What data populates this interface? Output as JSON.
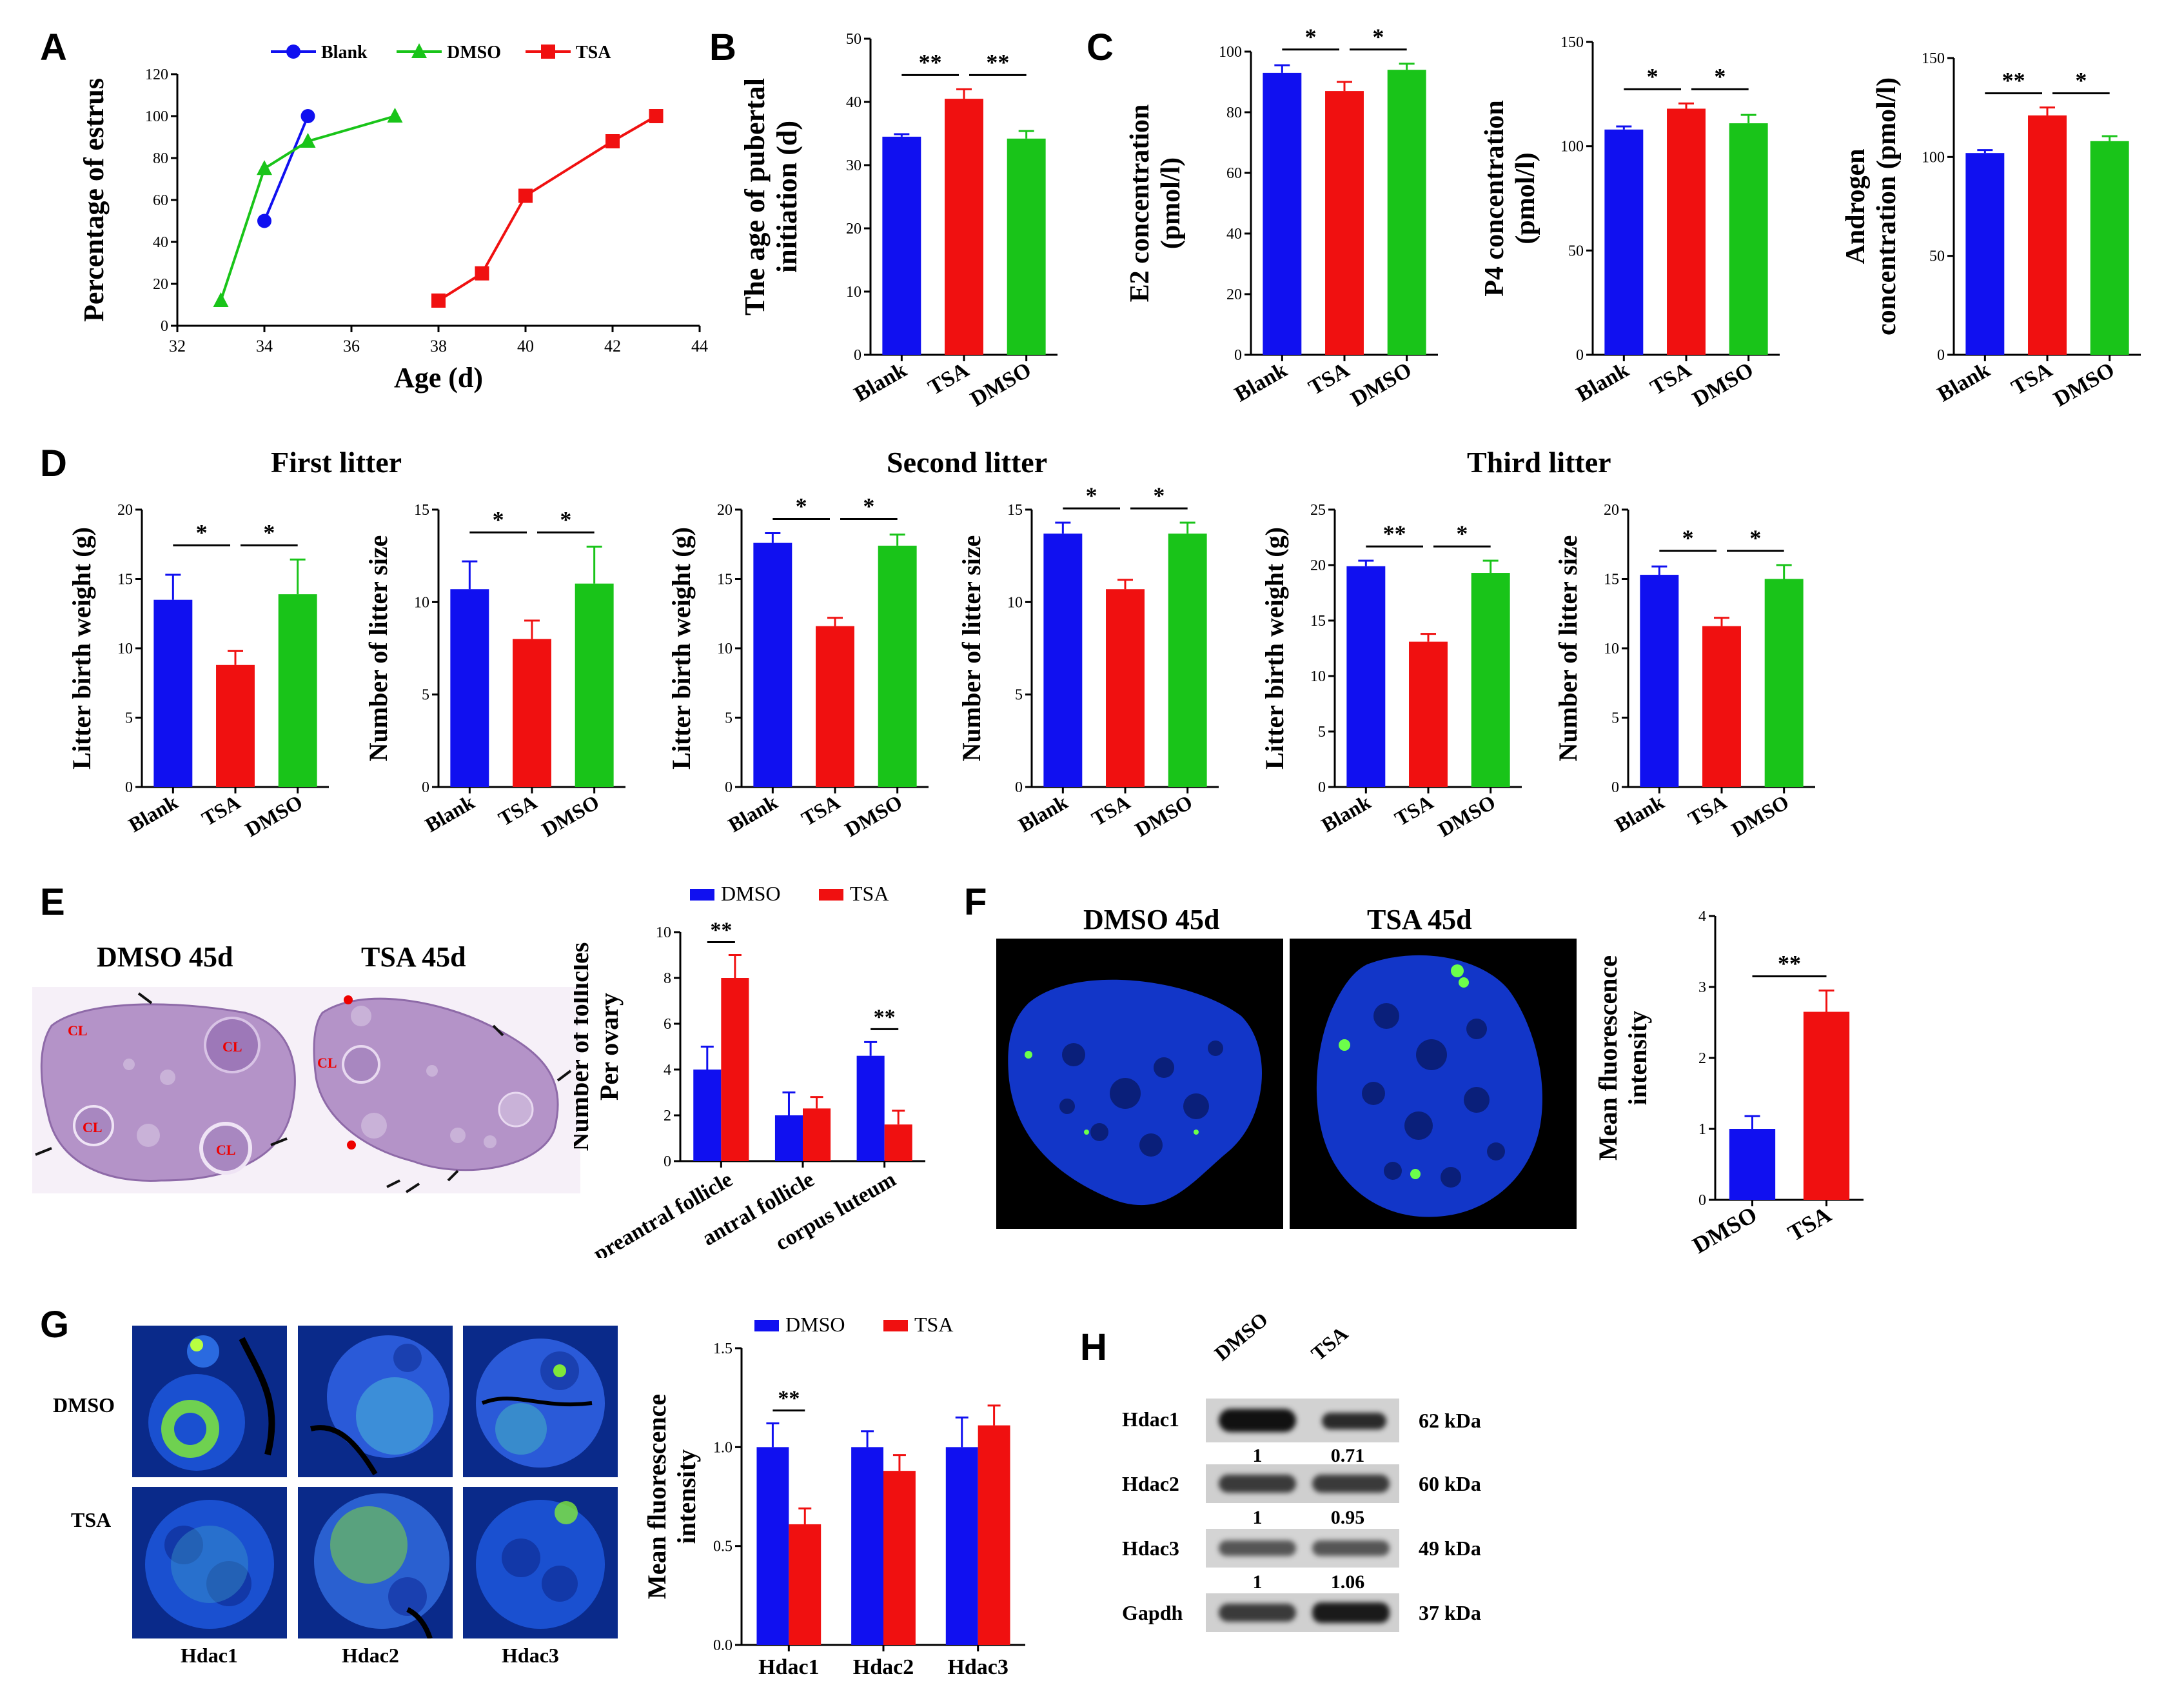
{
  "panel_labels": [
    "A",
    "B",
    "C",
    "D",
    "E",
    "F",
    "G",
    "H"
  ],
  "colors": {
    "blank": "#1010f0",
    "tsa": "#f01010",
    "dmso": "#19c419",
    "histo": "#b493c8",
    "fluor_bg": "#1236c8",
    "fluor_spot": "#6cff4a"
  },
  "titles": {
    "first": "First litter",
    "second": "Second litter",
    "third": "Third litter",
    "e_dmso": "DMSO 45d",
    "e_tsa": "TSA 45d",
    "f_dmso": "DMSO 45d",
    "f_tsa": "TSA 45d"
  },
  "legend": {
    "blank": "Blank",
    "dmso": "DMSO",
    "tsa": "TSA"
  },
  "histo": {
    "cl": "CL"
  },
  "g_rows": [
    "DMSO",
    "TSA"
  ],
  "g_cols": [
    "Hdac1",
    "Hdac2",
    "Hdac3"
  ],
  "western": {
    "lanes": [
      "DMSO",
      "TSA"
    ],
    "rows": [
      {
        "name": "Hdac1",
        "kda": "62 kDa",
        "ratio": [
          "1",
          "0.71"
        ]
      },
      {
        "name": "Hdac2",
        "kda": "60 kDa",
        "ratio": [
          "1",
          "0.95"
        ]
      },
      {
        "name": "Hdac3",
        "kda": "49 kDa",
        "ratio": [
          "1",
          "1.06"
        ]
      },
      {
        "name": "Gapdh",
        "kda": "37 kDa",
        "ratio": null
      }
    ]
  },
  "chart_data": [
    {
      "id": "A",
      "type": "line",
      "xlabel": "Age (d)",
      "ylabel": "Percentage of estrus",
      "xlim": [
        32,
        44
      ],
      "xticks": [
        32,
        34,
        36,
        38,
        40,
        42,
        44
      ],
      "ylim": [
        0,
        120
      ],
      "yticks": [
        0,
        20,
        40,
        60,
        80,
        100,
        120
      ],
      "series": [
        {
          "name": "Blank",
          "color": "#1010f0",
          "marker": "circle",
          "x": [
            34,
            35
          ],
          "y": [
            50,
            100
          ]
        },
        {
          "name": "DMSO",
          "color": "#19c419",
          "marker": "triangle",
          "x": [
            33,
            34,
            35,
            37
          ],
          "y": [
            12,
            75,
            88,
            100
          ]
        },
        {
          "name": "TSA",
          "color": "#f01010",
          "marker": "square",
          "x": [
            38,
            39,
            40,
            42,
            43
          ],
          "y": [
            12,
            25,
            62,
            88,
            100
          ]
        }
      ]
    },
    {
      "id": "B",
      "type": "bar",
      "ylabel": [
        "The age of pubertal",
        "initiation (d)"
      ],
      "categories": [
        "Blank",
        "TSA",
        "DMSO"
      ],
      "values": [
        34.5,
        40.5,
        34.2
      ],
      "errors": [
        0.4,
        1.5,
        1.2
      ],
      "ylim": [
        0,
        50
      ],
      "yticks": [
        0,
        10,
        20,
        30,
        40,
        50
      ],
      "sig": [
        {
          "from": 0,
          "to": 1,
          "label": "**"
        },
        {
          "from": 1,
          "to": 2,
          "label": "**"
        }
      ]
    },
    {
      "id": "C1",
      "type": "bar",
      "ylabel": [
        "E2 concentration",
        "(pmol/l)"
      ],
      "categories": [
        "Blank",
        "TSA",
        "DMSO"
      ],
      "values": [
        93,
        87,
        94
      ],
      "errors": [
        2.5,
        3,
        2
      ],
      "ylim": [
        0,
        100
      ],
      "yticks": [
        0,
        20,
        40,
        60,
        80,
        100
      ],
      "sig": [
        {
          "from": 0,
          "to": 1,
          "label": "*"
        },
        {
          "from": 1,
          "to": 2,
          "label": "*"
        }
      ]
    },
    {
      "id": "C2",
      "type": "bar",
      "ylabel": [
        "P4 concentration",
        "(pmol/l)"
      ],
      "categories": [
        "Blank",
        "TSA",
        "DMSO"
      ],
      "values": [
        108,
        118,
        111
      ],
      "errors": [
        1.5,
        2.5,
        4
      ],
      "ylim": [
        0,
        150
      ],
      "yticks": [
        0,
        50,
        100,
        150
      ],
      "sig": [
        {
          "from": 0,
          "to": 1,
          "label": "*"
        },
        {
          "from": 1,
          "to": 2,
          "label": "*"
        }
      ]
    },
    {
      "id": "C3",
      "type": "bar",
      "ylabel": [
        "Androgen",
        "concentration (pmol/l)"
      ],
      "categories": [
        "Blank",
        "TSA",
        "DMSO"
      ],
      "values": [
        102,
        121,
        108
      ],
      "errors": [
        1.5,
        4,
        2.5
      ],
      "ylim": [
        0,
        150
      ],
      "yticks": [
        0,
        50,
        100,
        150
      ],
      "sig": [
        {
          "from": 0,
          "to": 1,
          "label": "**"
        },
        {
          "from": 1,
          "to": 2,
          "label": "*"
        }
      ]
    },
    {
      "id": "D1",
      "type": "bar",
      "ylabel": [
        "Litter birth weight (g)"
      ],
      "categories": [
        "Blank",
        "TSA",
        "DMSO"
      ],
      "values": [
        13.5,
        8.8,
        13.9
      ],
      "errors": [
        1.8,
        1,
        2.5
      ],
      "ylim": [
        0,
        20
      ],
      "yticks": [
        0,
        5,
        10,
        15,
        20
      ],
      "sig": [
        {
          "from": 0,
          "to": 1,
          "label": "*"
        },
        {
          "from": 1,
          "to": 2,
          "label": "*"
        }
      ]
    },
    {
      "id": "D2",
      "type": "bar",
      "ylabel": [
        "Number of litter size"
      ],
      "categories": [
        "Blank",
        "TSA",
        "DMSO"
      ],
      "values": [
        10.7,
        8,
        11
      ],
      "errors": [
        1.5,
        1,
        2
      ],
      "ylim": [
        0,
        15
      ],
      "yticks": [
        0,
        5,
        10,
        15
      ],
      "sig": [
        {
          "from": 0,
          "to": 1,
          "label": "*"
        },
        {
          "from": 1,
          "to": 2,
          "label": "*"
        }
      ]
    },
    {
      "id": "D3",
      "type": "bar",
      "ylabel": [
        "Litter birth weight (g)"
      ],
      "categories": [
        "Blank",
        "TSA",
        "DMSO"
      ],
      "values": [
        17.6,
        11.6,
        17.4
      ],
      "errors": [
        0.7,
        0.6,
        0.8
      ],
      "ylim": [
        0,
        20
      ],
      "yticks": [
        0,
        5,
        10,
        15,
        20
      ],
      "sig": [
        {
          "from": 0,
          "to": 1,
          "label": "*"
        },
        {
          "from": 1,
          "to": 2,
          "label": "*"
        }
      ]
    },
    {
      "id": "D4",
      "type": "bar",
      "ylabel": [
        "Number of litter size"
      ],
      "categories": [
        "Blank",
        "TSA",
        "DMSO"
      ],
      "values": [
        13.7,
        10.7,
        13.7
      ],
      "errors": [
        0.6,
        0.5,
        0.6
      ],
      "ylim": [
        0,
        15
      ],
      "yticks": [
        0,
        5,
        10,
        15
      ],
      "sig": [
        {
          "from": 0,
          "to": 1,
          "label": "*"
        },
        {
          "from": 1,
          "to": 2,
          "label": "*"
        }
      ]
    },
    {
      "id": "D5",
      "type": "bar",
      "ylabel": [
        "Litter birth weight (g)"
      ],
      "categories": [
        "Blank",
        "TSA",
        "DMSO"
      ],
      "values": [
        19.9,
        13.1,
        19.3
      ],
      "errors": [
        0.5,
        0.7,
        1.1
      ],
      "ylim": [
        0,
        25
      ],
      "yticks": [
        0,
        5,
        10,
        15,
        20,
        25
      ],
      "sig": [
        {
          "from": 0,
          "to": 1,
          "label": "**"
        },
        {
          "from": 1,
          "to": 2,
          "label": "*"
        }
      ]
    },
    {
      "id": "D6",
      "type": "bar",
      "ylabel": [
        "Number of litter size"
      ],
      "categories": [
        "Blank",
        "TSA",
        "DMSO"
      ],
      "values": [
        15.3,
        11.6,
        15
      ],
      "errors": [
        0.6,
        0.6,
        1
      ],
      "ylim": [
        0,
        20
      ],
      "yticks": [
        0,
        5,
        10,
        15,
        20
      ],
      "sig": [
        {
          "from": 0,
          "to": 1,
          "label": "*"
        },
        {
          "from": 1,
          "to": 2,
          "label": "*"
        }
      ]
    },
    {
      "id": "E",
      "type": "grouped_bar",
      "ylabel": [
        "Number of follicles",
        "Per ovary"
      ],
      "categories": [
        "preantral follicle",
        "antral follicle",
        "corpus luteum"
      ],
      "series": [
        {
          "name": "DMSO",
          "color": "#1010f0",
          "values": [
            4,
            2,
            4.6
          ],
          "errors": [
            1,
            1,
            0.6
          ]
        },
        {
          "name": "TSA",
          "color": "#f01010",
          "values": [
            8,
            2.3,
            1.6
          ],
          "errors": [
            1,
            0.5,
            0.6
          ]
        }
      ],
      "ylim": [
        0,
        10
      ],
      "yticks": [
        0,
        2,
        4,
        6,
        8,
        10
      ],
      "sig": [
        {
          "group": 0,
          "label": "**"
        },
        {
          "group": 2,
          "label": "**"
        }
      ]
    },
    {
      "id": "F",
      "type": "bar",
      "ylabel": [
        "Mean fluorescence",
        "intensity"
      ],
      "categories": [
        "DMSO",
        "TSA"
      ],
      "values": [
        1,
        2.65
      ],
      "errors": [
        0.18,
        0.3
      ],
      "ylim": [
        0,
        4
      ],
      "yticks": [
        0,
        1,
        2,
        3,
        4
      ],
      "sig": [
        {
          "from": 0,
          "to": 1,
          "label": "**"
        }
      ]
    },
    {
      "id": "G",
      "type": "grouped_bar",
      "ylabel": [
        "Mean fluorescence",
        "intensity"
      ],
      "categories": [
        "Hdac1",
        "Hdac2",
        "Hdac3"
      ],
      "series": [
        {
          "name": "DMSO",
          "color": "#1010f0",
          "values": [
            1,
            1,
            1
          ],
          "errors": [
            0.12,
            0.08,
            0.15
          ]
        },
        {
          "name": "TSA",
          "color": "#f01010",
          "values": [
            0.61,
            0.88,
            1.11
          ],
          "errors": [
            0.08,
            0.08,
            0.1
          ]
        }
      ],
      "ylim": [
        0,
        1.5
      ],
      "yticks": [
        "0.0",
        "0.5",
        "1.0",
        "1.5"
      ],
      "sig": [
        {
          "group": 0,
          "label": "**"
        }
      ]
    }
  ]
}
